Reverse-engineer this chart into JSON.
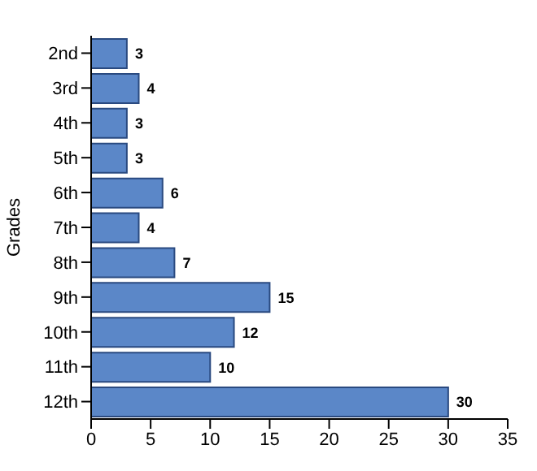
{
  "chart_data": {
    "type": "bar",
    "orientation": "horizontal",
    "ylabel": "Grades",
    "categories": [
      "2nd",
      "3rd",
      "4th",
      "5th",
      "6th",
      "7th",
      "8th",
      "9th",
      "10th",
      "11th",
      "12th"
    ],
    "values": [
      3,
      4,
      3,
      3,
      6,
      4,
      7,
      15,
      12,
      10,
      30
    ],
    "color": "#5b87c8",
    "xlim": [
      0,
      35
    ],
    "xticks": [
      0,
      5,
      10,
      15,
      20,
      25,
      30,
      35
    ],
    "data_labels": true,
    "grid": false,
    "legend": false
  }
}
